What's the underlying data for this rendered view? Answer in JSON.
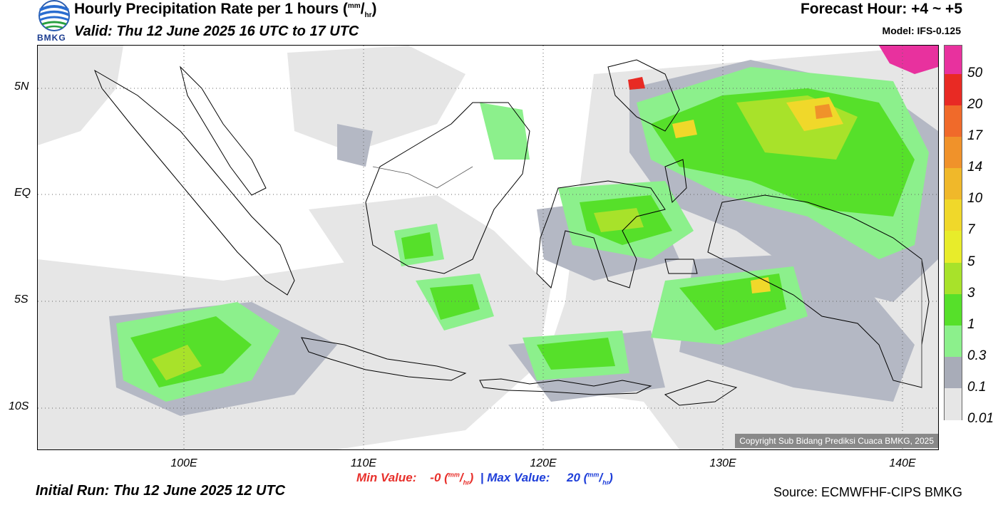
{
  "header": {
    "title_main": "Hourly Precipitation Rate per 1 hours (",
    "title_unit_num": "mm",
    "title_unit_den": "hr",
    "title_close": ")",
    "valid": "Valid: Thu 12 June 2025 16 UTC to 17 UTC",
    "forecast_hour": "Forecast Hour: +4 ~ +5",
    "model": "Model: IFS-0.125",
    "logo_text": "BMKG"
  },
  "map": {
    "lat_labels": [
      "5N",
      "EQ",
      "5S",
      "10S"
    ],
    "lon_labels": [
      "100E",
      "110E",
      "120E",
      "130E",
      "140E"
    ],
    "copyright": "Copyright Sub Bidang Prediksi Cuaca BMKG, 2025"
  },
  "legend": {
    "labels": [
      "50",
      "20",
      "17",
      "14",
      "10",
      "7",
      "5",
      "3",
      "1",
      "0.3",
      "0.1",
      "0.01"
    ],
    "colors": [
      "#e8319e",
      "#e82a24",
      "#f06a2a",
      "#f0922a",
      "#f0b82a",
      "#f0d82a",
      "#e8ec2a",
      "#a8e22a",
      "#56e02a",
      "#8cf08c",
      "#a8acb8",
      "#e6e6e6"
    ]
  },
  "footer": {
    "min_label": "Min Value:",
    "min_value": "-0",
    "max_label": "Max Value:",
    "max_value": "20",
    "unit_num": "mm",
    "unit_den": "hr",
    "separator": "|",
    "initial_run": "Initial Run: Thu 12 June 2025 12 UTC",
    "source": "Source: ECMWFHF-CIPS BMKG"
  }
}
